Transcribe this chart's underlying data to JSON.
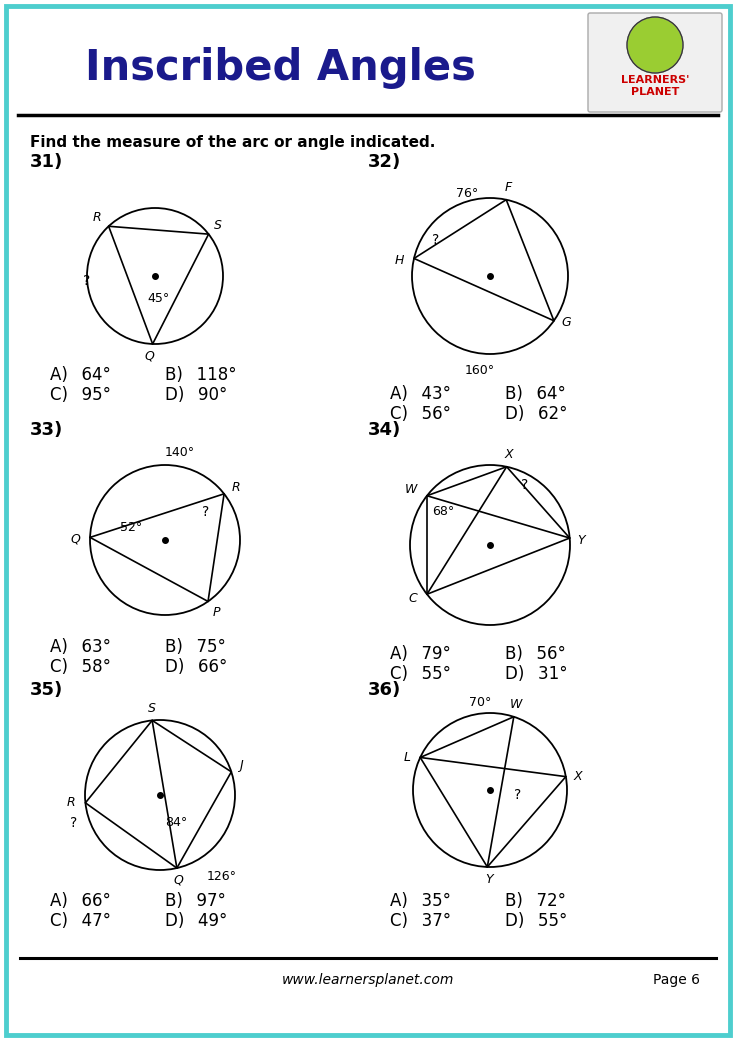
{
  "title": "Inscribed Angles",
  "subtitle": "Find the measure of the arc or angle indicated.",
  "border_color": "#4ECECE",
  "title_color": "#1a1a8c",
  "footer_text": "www.learnersplanet.com",
  "page_text": "Page 6",
  "bg_color": "#ffffff",
  "problems": [
    {
      "number": "31)",
      "answers": [
        "A)  64°",
        "B)  118°",
        "C)  95°",
        "D)  90°"
      ]
    },
    {
      "number": "32)",
      "answers": [
        "A)  43°",
        "B)  64°",
        "C)  56°",
        "D)  62°"
      ]
    },
    {
      "number": "33)",
      "answers": [
        "A)  63°",
        "B)  75°",
        "C)  58°",
        "D)  66°"
      ]
    },
    {
      "number": "34)",
      "answers": [
        "A)  79°",
        "B)  56°",
        "C)  55°",
        "D)  31°"
      ]
    },
    {
      "number": "35)",
      "answers": [
        "A)  66°",
        "B)  97°",
        "C)  47°",
        "D)  49°"
      ]
    },
    {
      "number": "36)",
      "answers": [
        "A)  35°",
        "B)  72°",
        "C)  37°",
        "D)  55°"
      ]
    }
  ]
}
